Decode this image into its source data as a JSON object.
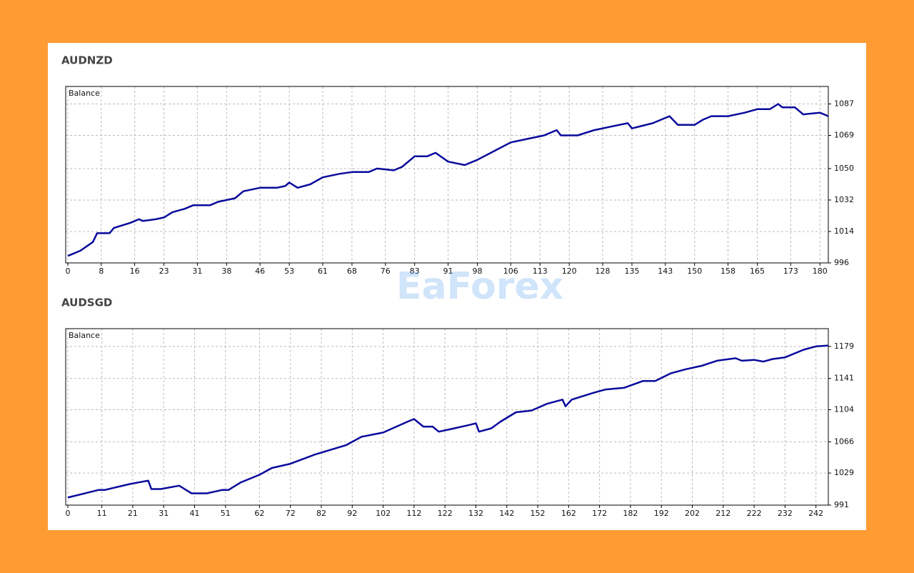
{
  "watermark": "EaForex",
  "chart_data": [
    {
      "type": "line",
      "title": "AUDNZD",
      "x": [
        0,
        3,
        6,
        7,
        10,
        11,
        15,
        17,
        18,
        21,
        23,
        25,
        28,
        30,
        34,
        36,
        40,
        42,
        46,
        50,
        52,
        53,
        55,
        58,
        61,
        65,
        68,
        72,
        74,
        78,
        80,
        83,
        86,
        88,
        91,
        95,
        98,
        102,
        106,
        110,
        114,
        117,
        118,
        122,
        126,
        130,
        134,
        135,
        140,
        144,
        146,
        150,
        152,
        154,
        158,
        162,
        165,
        168,
        170,
        171,
        174,
        176,
        180,
        182
      ],
      "series": [
        {
          "name": "Balance",
          "color": "#0a0a9c",
          "values": [
            1000,
            1003,
            1008,
            1013,
            1013,
            1016,
            1019,
            1021,
            1020,
            1021,
            1022,
            1025,
            1027,
            1029,
            1029,
            1031,
            1033,
            1037,
            1039,
            1039,
            1040,
            1042,
            1039,
            1041,
            1045,
            1047,
            1048,
            1048,
            1050,
            1049,
            1051,
            1057,
            1057,
            1059,
            1054,
            1052,
            1055,
            1060,
            1065,
            1067,
            1069,
            1072,
            1069,
            1069,
            1072,
            1074,
            1076,
            1073,
            1076,
            1080,
            1075,
            1075,
            1078,
            1080,
            1080,
            1082,
            1084,
            1084,
            1087,
            1085,
            1085,
            1081,
            1082,
            1080
          ]
        }
      ],
      "xlim": [
        0,
        182
      ],
      "xticks": [
        0,
        8,
        16,
        23,
        31,
        38,
        46,
        53,
        61,
        68,
        76,
        83,
        91,
        98,
        106,
        113,
        120,
        128,
        135,
        143,
        150,
        158,
        165,
        173,
        180
      ],
      "ylim": [
        996,
        1097
      ],
      "yticks": [
        996,
        1014,
        1032,
        1050,
        1069,
        1087
      ],
      "grid": true
    },
    {
      "type": "line",
      "title": "AUDSGD",
      "x": [
        0,
        10,
        12,
        20,
        26,
        27,
        30,
        36,
        40,
        45,
        50,
        52,
        56,
        62,
        66,
        72,
        80,
        90,
        95,
        102,
        110,
        112,
        115,
        118,
        120,
        125,
        130,
        132,
        133,
        137,
        140,
        145,
        150,
        155,
        160,
        161,
        163,
        170,
        174,
        180,
        186,
        190,
        195,
        200,
        205,
        210,
        216,
        218,
        222,
        225,
        228,
        232,
        238,
        242,
        246
      ],
      "series": [
        {
          "name": "Balance",
          "color": "#0a0a9c",
          "values": [
            1000,
            1009,
            1009,
            1016,
            1020,
            1010,
            1010,
            1014,
            1005,
            1005,
            1009,
            1009,
            1018,
            1027,
            1035,
            1040,
            1051,
            1062,
            1072,
            1077,
            1090,
            1093,
            1084,
            1084,
            1078,
            1082,
            1086,
            1088,
            1078,
            1082,
            1090,
            1101,
            1103,
            1111,
            1116,
            1108,
            1116,
            1124,
            1128,
            1130,
            1138,
            1138,
            1147,
            1152,
            1156,
            1162,
            1165,
            1162,
            1163,
            1161,
            1164,
            1166,
            1175,
            1179,
            1180
          ]
        }
      ],
      "xlim": [
        0,
        246
      ],
      "xticks": [
        0,
        11,
        21,
        31,
        41,
        51,
        62,
        72,
        82,
        92,
        102,
        112,
        122,
        132,
        142,
        152,
        162,
        172,
        182,
        192,
        202,
        212,
        222,
        232,
        242
      ],
      "ylim": [
        991,
        1200
      ],
      "yticks": [
        991,
        1029,
        1066,
        1104,
        1141,
        1179
      ],
      "grid": true
    }
  ]
}
